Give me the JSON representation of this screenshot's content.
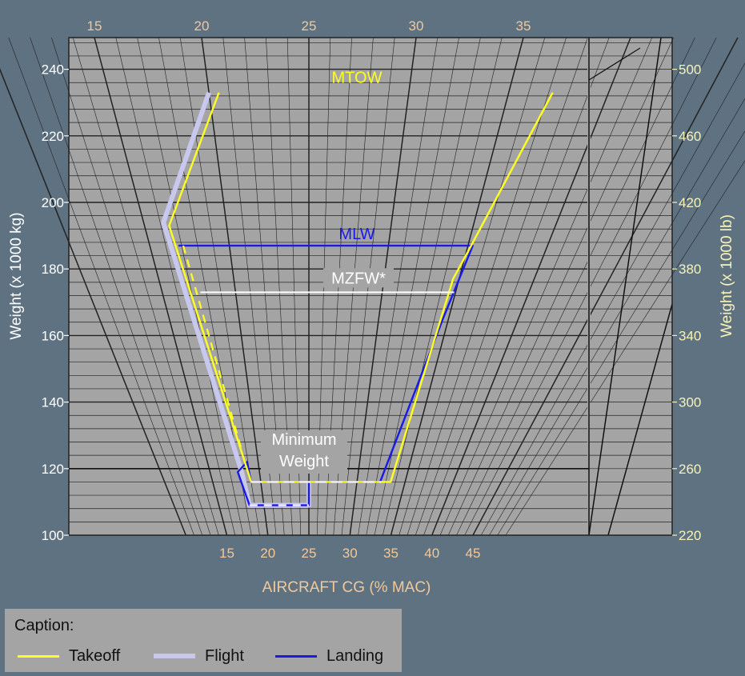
{
  "chart_data": {
    "type": "line",
    "title": "",
    "xlabel": "AIRCRAFT CG (% MAC)",
    "ylabel_left": "Weight (x 1000 kg)",
    "ylabel_right": "Weight (x 1000 lb)",
    "ylim": [
      100,
      250
    ],
    "yticks_left": [
      100,
      120,
      140,
      160,
      180,
      200,
      220,
      240
    ],
    "yticks_right": [
      220,
      260,
      300,
      340,
      380,
      420,
      460,
      500
    ],
    "top_tick_labels": [
      "15",
      "20",
      "25",
      "30",
      "35"
    ],
    "bottom_tick_labels": [
      "15",
      "20",
      "25",
      "30",
      "35",
      "40",
      "45"
    ],
    "grid": true,
    "legend_position": "bottom-left",
    "annotations": {
      "mtow": "MTOW",
      "mlw": "MLW",
      "mzfw": "MZFW*",
      "minimum_weight_line1": "Minimum",
      "minimum_weight_line2": "Weight"
    },
    "limit_weights": {
      "mtow": 233,
      "mlw": 187,
      "mzfw": 173,
      "minimum_weight": 116,
      "flight_min_weight": 109
    },
    "series": [
      {
        "name": "Takeoff",
        "color": "#ffff22",
        "points": [
          [
            20.5,
            233
          ],
          [
            16.5,
            193
          ],
          [
            19.0,
            116
          ],
          [
            33.5,
            116
          ],
          [
            34.6,
            177
          ],
          [
            35.2,
            187
          ],
          [
            37.2,
            233
          ]
        ]
      },
      {
        "name": "Flight",
        "color": "#c8c8ee",
        "points": [
          [
            20.0,
            233
          ],
          [
            16.2,
            194
          ],
          [
            18.2,
            119
          ],
          [
            18.4,
            109
          ],
          [
            25.0,
            109
          ],
          [
            25.0,
            116
          ]
        ]
      },
      {
        "name": "Landing",
        "color": "#1a1ae6",
        "points": [
          [
            16.8,
            187
          ],
          [
            35.3,
            187
          ],
          [
            34.6,
            165
          ],
          [
            32.4,
            116
          ],
          [
            19.0,
            116
          ],
          [
            18.9,
            122
          ],
          [
            17.8,
            119
          ],
          [
            18.4,
            109
          ],
          [
            25.0,
            109
          ],
          [
            25.0,
            116
          ]
        ]
      }
    ]
  },
  "legend": {
    "title": "Caption:",
    "items": [
      {
        "label": "Takeoff",
        "color": "#ffff22"
      },
      {
        "label": "Flight",
        "color": "#c8c8ee"
      },
      {
        "label": "Landing",
        "color": "#1a1ae6"
      }
    ]
  },
  "colors": {
    "background": "#5e7282",
    "plot": "#a4a4a4",
    "grid": "#222222",
    "minimum_weight": "#ffffff",
    "mzfw": "#ffffff",
    "top_ticks": "#f2c89a",
    "bottom_ticks": "#f2c89a",
    "left_ticks": "#ffffff",
    "right_ticks": "#f7f3b8"
  }
}
